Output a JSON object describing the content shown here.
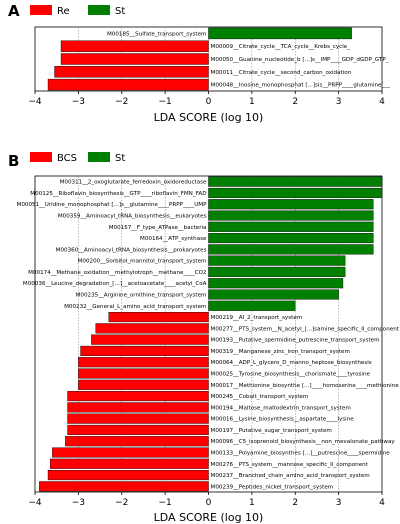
{
  "chart_data": [
    {
      "type": "bar",
      "panel_label": "A",
      "orientation": "horizontal",
      "xlabel": "LDA SCORE (log 10)",
      "xlim": [
        -4,
        4
      ],
      "xticks": [
        -4,
        -3,
        -2,
        -1,
        0,
        1,
        2,
        3,
        4
      ],
      "grid": true,
      "legend_position": "top-left",
      "colors": {
        "negative": "#ff0000",
        "positive": "#007f00"
      },
      "legend": [
        {
          "label": "Re",
          "color": "#ff0000"
        },
        {
          "label": "St",
          "color": "#007f00"
        }
      ],
      "bars": [
        {
          "label": "M00185__Sulfate_transport_system",
          "value": 3.3
        },
        {
          "label": "M00009__Citrate_cycle__TCA_cycle__Krebs_cycle_",
          "value": -3.4
        },
        {
          "label": "M00050__Guanine_nucleotide_b [...]s__IMP____GDP_dGDP_GTP_",
          "value": -3.4
        },
        {
          "label": "M00011__Citrate_cycle__second_carbon_oxidation",
          "value": -3.55
        },
        {
          "label": "M00048__Inosine_monophosphat [...]sis__PRPP____glutamine___",
          "value": -3.7
        }
      ]
    },
    {
      "type": "bar",
      "panel_label": "B",
      "orientation": "horizontal",
      "xlabel": "LDA SCORE (log 10)",
      "xlim": [
        -4,
        4
      ],
      "xticks": [
        -4,
        -3,
        -2,
        -1,
        0,
        1,
        2,
        3,
        4
      ],
      "grid": true,
      "legend_position": "top-left",
      "colors": {
        "negative": "#ff0000",
        "positive": "#007f00"
      },
      "legend": [
        {
          "label": "BCS",
          "color": "#ff0000"
        },
        {
          "label": "St",
          "color": "#007f00"
        }
      ],
      "bars": [
        {
          "label": "M00311__2_oxoglutarate_ferredoxin_oxidoreductase",
          "value": 4.0
        },
        {
          "label": "M00125__Riboflavin_biosynthesis__GTP____riboflavin_FMN_FAD",
          "value": 4.0
        },
        {
          "label": "M00051__Uridine_monophosphat [...]s__glutamine____PRPP____UMP",
          "value": 3.8
        },
        {
          "label": "M00359__Aminoacyl_tRNA_biosynthesis__eukaryotes",
          "value": 3.8
        },
        {
          "label": "M00157__F_type_ATPase__bacteria",
          "value": 3.8
        },
        {
          "label": "M00164__ATP_synthase",
          "value": 3.8
        },
        {
          "label": "M00360__Aminoacyl_tRNA_biosynthesis__prokaryotes",
          "value": 3.8
        },
        {
          "label": "M00200__Sorbitol_mannitol_transport_system",
          "value": 3.15
        },
        {
          "label": "M00174__Methane_oxidation__methylotroph__methane____CO2",
          "value": 3.15
        },
        {
          "label": "M00036__Leucine_degradation_[...]__acetoacetate____acetyl_CoA",
          "value": 3.1
        },
        {
          "label": "M00235__Arginine_ornithine_transport_system",
          "value": 3.0
        },
        {
          "label": "M00232__General_L_amino_acid_transport_system",
          "value": 2.0
        },
        {
          "label": "M00219__AI_2_transport_system",
          "value": -2.3
        },
        {
          "label": "M00277__PTS_system__N_acetyl_[...]samine_specific_II_component",
          "value": -2.6
        },
        {
          "label": "M00193__Putative_spermidine_putrescine_transport_system",
          "value": -2.7
        },
        {
          "label": "M00319__Manganese_zinc_iron_transport_system",
          "value": -2.95
        },
        {
          "label": "M00064__ADP_L_glycero_D_manno_heptose_biosynthesis",
          "value": -3.0
        },
        {
          "label": "M00025__Tyrosine_biosynthesis__chorismate____tyrosine",
          "value": -3.0
        },
        {
          "label": "M00017__Methionine_biosynthe [...]____homoserine____methionine",
          "value": -3.0
        },
        {
          "label": "M00245__Cobalt_transport_system",
          "value": -3.25
        },
        {
          "label": "M00194__Maltose_maltodextrin_transport_system",
          "value": -3.25
        },
        {
          "label": "M00016__Lysine_biosynthesis__aspartate____lysine",
          "value": -3.25
        },
        {
          "label": "M00197__Putative_sugar_transport_system",
          "value": -3.25
        },
        {
          "label": "M00096__C5_isoprenoid_biosynthesis__non_mevalonate_pathway",
          "value": -3.3
        },
        {
          "label": "M00133__Polyamine_biosynthes [...]__putrescine____spermidine",
          "value": -3.6
        },
        {
          "label": "M00276__PTS_system__mannose_specific_II_component",
          "value": -3.65
        },
        {
          "label": "M00237__Branched_chain_amino_acid_transport_system",
          "value": -3.7
        },
        {
          "label": "M00239__Peptides_nickel_transport_system",
          "value": -3.9
        }
      ]
    }
  ]
}
